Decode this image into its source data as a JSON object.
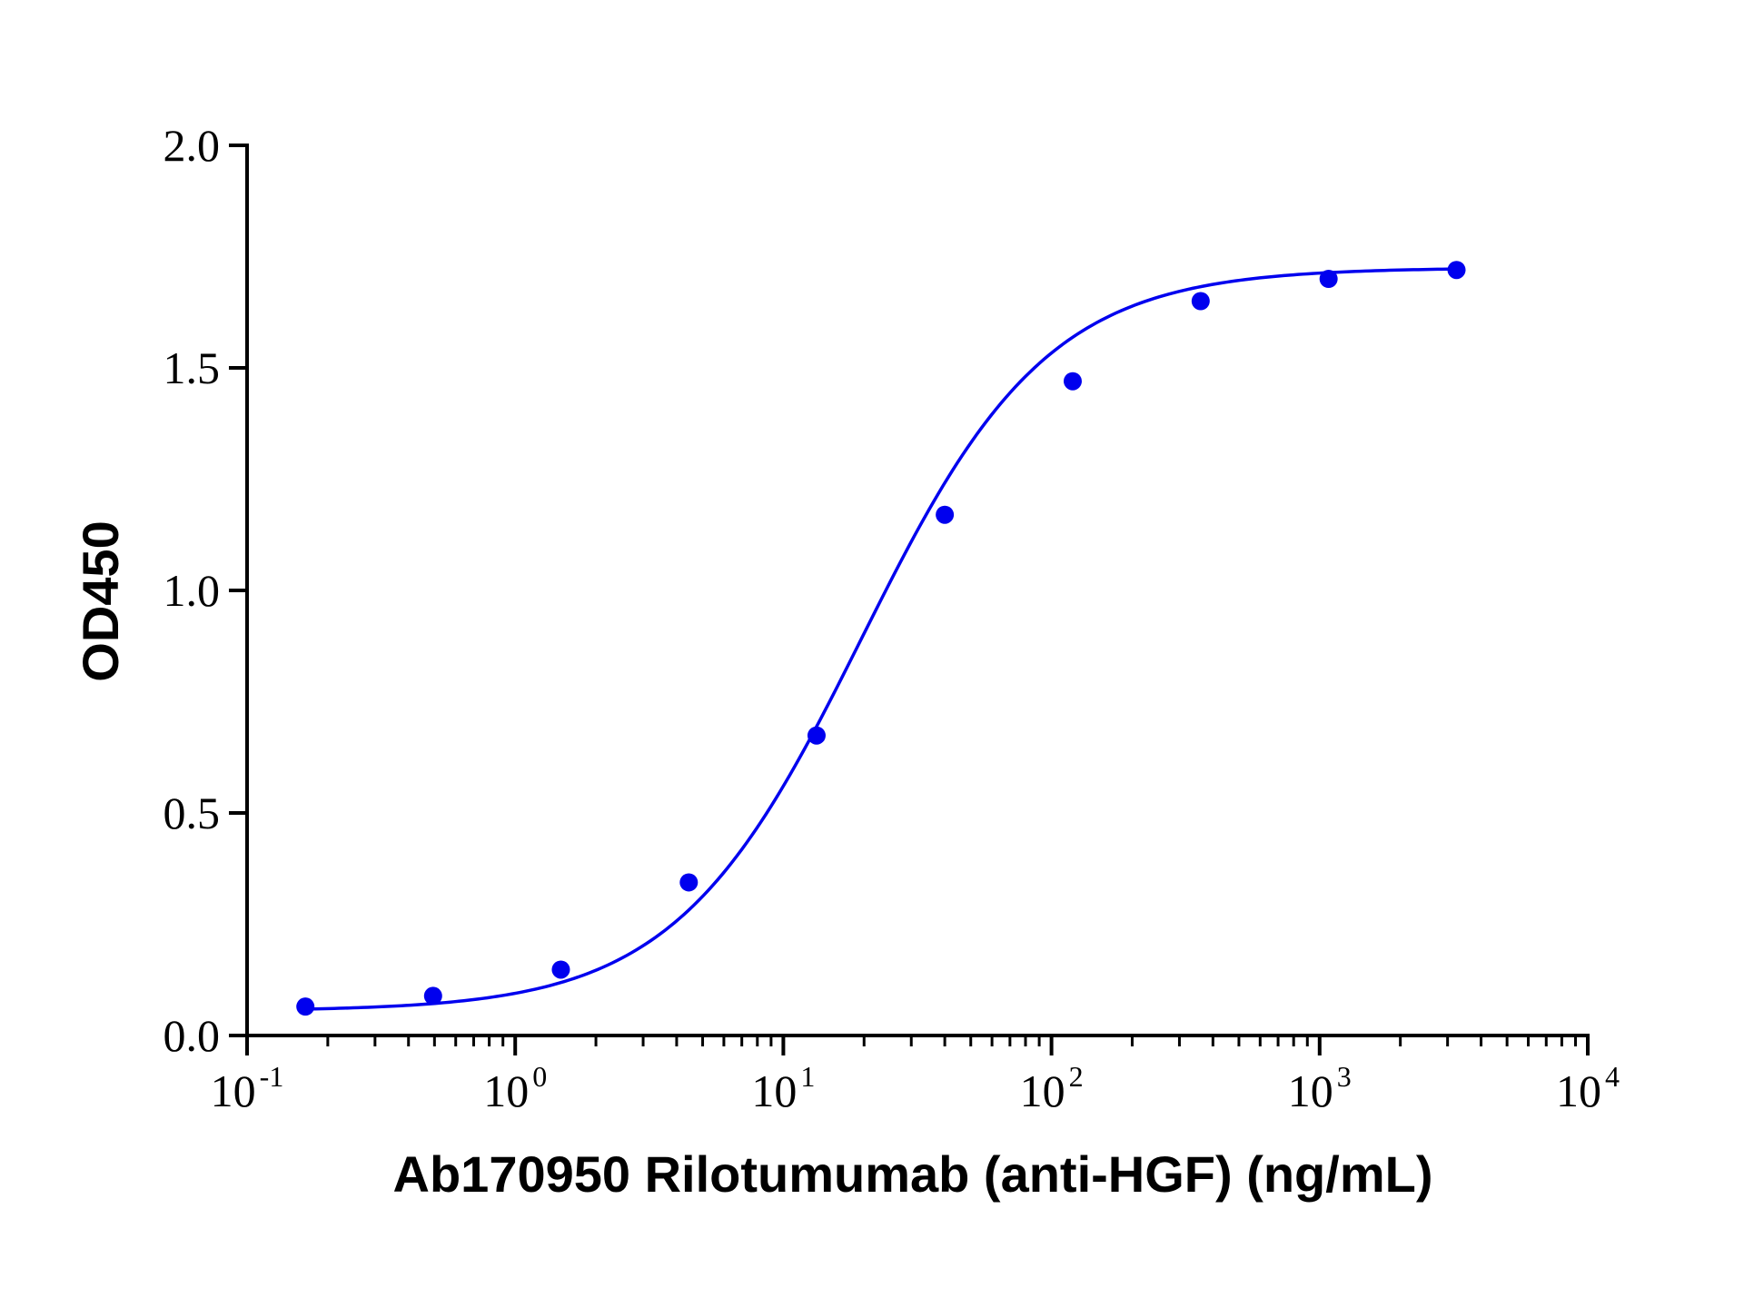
{
  "chart_data": {
    "type": "scatter",
    "title": "",
    "xlabel": "Ab170950 Rilotumumab (anti-HGF) (ng/mL)",
    "ylabel": "OD450",
    "x_scale": "log10",
    "xlim": [
      0.1,
      10000
    ],
    "ylim": [
      0.0,
      2.0
    ],
    "x_ticks": [
      {
        "base": "10",
        "exp": "-1"
      },
      {
        "base": "10",
        "exp": "0"
      },
      {
        "base": "10",
        "exp": "1"
      },
      {
        "base": "10",
        "exp": "2"
      },
      {
        "base": "10",
        "exp": "3"
      },
      {
        "base": "10",
        "exp": "4"
      }
    ],
    "y_ticks": [
      "0.0",
      "0.5",
      "1.0",
      "1.5",
      "2.0"
    ],
    "grid": false,
    "legend": "none",
    "series": [
      {
        "x": [
          0.165,
          0.494,
          1.48,
          4.44,
          13.3,
          40.0,
          120.0,
          360.0,
          1080.0,
          3240.0
        ],
        "y": [
          0.065,
          0.089,
          0.148,
          0.344,
          0.674,
          1.17,
          1.47,
          1.65,
          1.7,
          1.72
        ],
        "color": "#0000ee",
        "fit": "4PL"
      }
    ],
    "fit_params": {
      "bottom": 0.055,
      "top": 1.725,
      "ec50": 19.5,
      "hill": 1.25
    }
  }
}
